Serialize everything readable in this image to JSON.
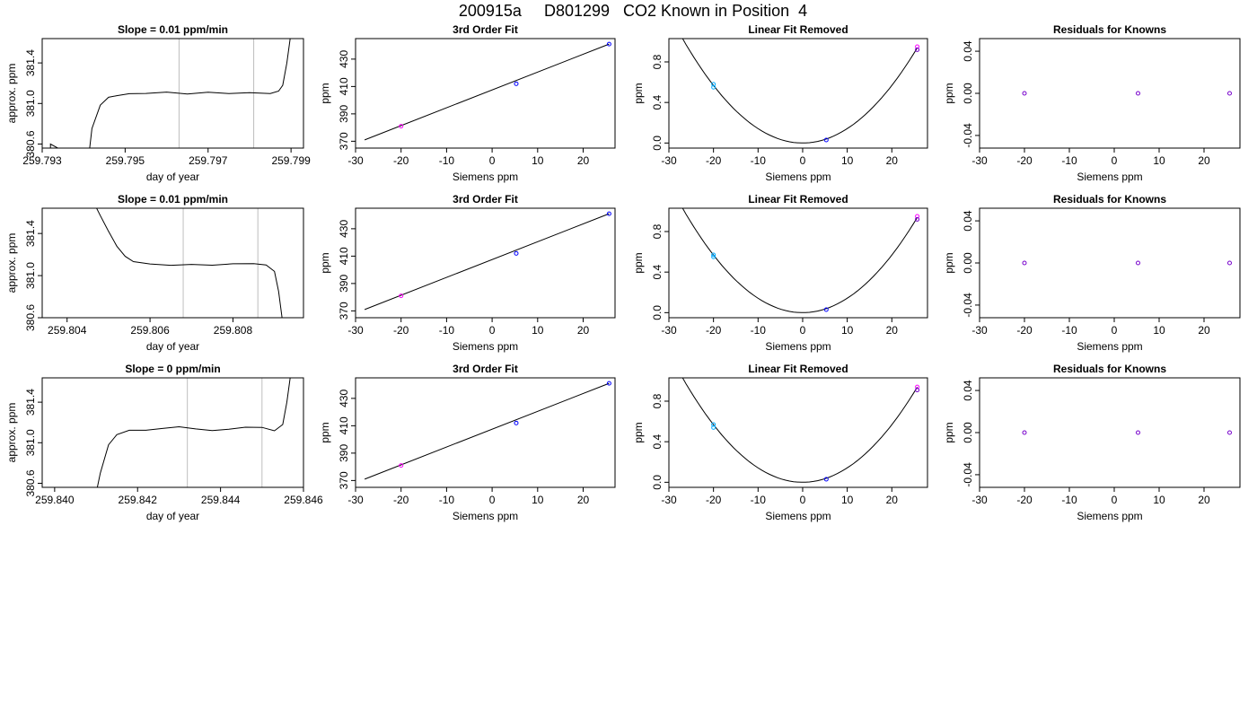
{
  "title": "200915a     D801299   CO2 Known in Position  4",
  "colors": {
    "line": "#000000",
    "gridline": "#bebebe",
    "point_magenta": "#ff00ff",
    "point_blue": "#0000ff",
    "point_cyan": "#00aaff",
    "point_purple": "#7700cc"
  },
  "chart_data": [
    {
      "type": "line",
      "title": "Slope =  0.01  ppm/min",
      "xlabel": "day of year",
      "ylabel": "approx. ppm",
      "xlim": [
        259.793,
        259.7993
      ],
      "ylim": [
        380.56,
        381.64
      ],
      "xticks": [
        "259.793",
        "259.795",
        "259.797",
        "259.799"
      ],
      "yticks": [
        "380.6",
        "381.0",
        "381.4"
      ],
      "vlines": [
        259.7963,
        259.7981
      ],
      "series": [
        {
          "x": [
            259.7932,
            259.7932,
            259.7932,
            259.7941,
            259.7942,
            259.7944,
            259.7946,
            259.7948,
            259.7951,
            259.7955,
            259.796,
            259.7965,
            259.797,
            259.7975,
            259.798,
            259.7985,
            259.7987,
            259.7988,
            259.7989,
            259.799
          ],
          "y": [
            380.5,
            380.55,
            380.6,
            380.4,
            380.75,
            380.98,
            381.06,
            381.08,
            381.1,
            381.1,
            381.11,
            381.09,
            381.11,
            381.1,
            381.11,
            381.1,
            381.12,
            381.18,
            381.4,
            381.7
          ]
        }
      ]
    },
    {
      "type": "scatter",
      "title": "3rd Order Fit",
      "xlabel": "Siemens ppm",
      "ylabel": "ppm",
      "xlim": [
        -30,
        27
      ],
      "ylim": [
        365,
        445
      ],
      "xticks": [
        -30,
        -20,
        -10,
        0,
        10,
        20
      ],
      "yticks": [
        370,
        390,
        410,
        430
      ],
      "points": [
        {
          "x": -20,
          "y": 381,
          "color": "magenta"
        },
        {
          "x": 5.3,
          "y": 412,
          "color": "blue"
        },
        {
          "x": 25.7,
          "y": 441,
          "color": "blue"
        }
      ],
      "fit_line": [
        [
          -28,
          371
        ],
        [
          25.7,
          441
        ]
      ]
    },
    {
      "type": "scatter",
      "title": "Linear Fit Removed",
      "xlabel": "Siemens ppm",
      "ylabel": "ppm",
      "xlim": [
        -30,
        28
      ],
      "ylim": [
        -0.05,
        1.03
      ],
      "xticks": [
        -30,
        -20,
        -10,
        0,
        10,
        20
      ],
      "yticks": [
        "0.0",
        "0.4",
        "0.8"
      ],
      "points": [
        {
          "x": -20,
          "y": 0.58,
          "color": "cyan"
        },
        {
          "x": -20,
          "y": 0.55,
          "color": "cyan"
        },
        {
          "x": 5.3,
          "y": 0.03,
          "color": "blue"
        },
        {
          "x": 25.7,
          "y": 0.95,
          "color": "magenta"
        },
        {
          "x": 25.7,
          "y": 0.92,
          "color": "purple"
        }
      ],
      "curve_coef": 0.00142,
      "curve_xrange": [
        -28,
        25.7
      ]
    },
    {
      "type": "scatter",
      "title": "Residuals for Knowns",
      "xlabel": "Siemens ppm",
      "ylabel": "ppm",
      "xlim": [
        -30,
        28
      ],
      "ylim": [
        -0.052,
        0.052
      ],
      "xticks": [
        -30,
        -20,
        -10,
        0,
        10,
        20
      ],
      "yticks": [
        "-0.04",
        "0.00",
        "0.04"
      ],
      "points": [
        {
          "x": -20,
          "y": 0,
          "color": "purple"
        },
        {
          "x": 5.3,
          "y": 0,
          "color": "purple"
        },
        {
          "x": 25.7,
          "y": 0,
          "color": "purple"
        }
      ]
    },
    {
      "type": "line",
      "title": "Slope =  0.01  ppm/min",
      "xlabel": "day of year",
      "ylabel": "approx. ppm",
      "xlim": [
        259.8034,
        259.8097
      ],
      "ylim": [
        380.6,
        381.64
      ],
      "xticks": [
        "259.804",
        "259.806",
        "259.808"
      ],
      "yticks": [
        "380.6",
        "381.0",
        "381.4"
      ],
      "vlines": [
        259.8068,
        259.8086
      ],
      "series": [
        {
          "x": [
            259.8047,
            259.8048,
            259.805,
            259.8052,
            259.8054,
            259.8056,
            259.806,
            259.8065,
            259.807,
            259.8075,
            259.808,
            259.8085,
            259.8088,
            259.809,
            259.8091,
            259.8092
          ],
          "y": [
            381.65,
            381.57,
            381.42,
            381.28,
            381.18,
            381.13,
            381.11,
            381.1,
            381.11,
            381.1,
            381.11,
            381.11,
            381.1,
            381.04,
            380.85,
            380.55
          ]
        }
      ]
    },
    {
      "type": "scatter",
      "title": "3rd Order Fit",
      "xlabel": "Siemens ppm",
      "ylabel": "ppm",
      "xlim": [
        -30,
        27
      ],
      "ylim": [
        365,
        445
      ],
      "xticks": [
        -30,
        -20,
        -10,
        0,
        10,
        20
      ],
      "yticks": [
        370,
        390,
        410,
        430
      ],
      "points": [
        {
          "x": -20,
          "y": 381,
          "color": "magenta"
        },
        {
          "x": 5.3,
          "y": 412,
          "color": "blue"
        },
        {
          "x": 25.7,
          "y": 441,
          "color": "blue"
        }
      ],
      "fit_line": [
        [
          -28,
          371
        ],
        [
          25.7,
          441
        ]
      ]
    },
    {
      "type": "scatter",
      "title": "Linear Fit Removed",
      "xlabel": "Siemens ppm",
      "ylabel": "ppm",
      "xlim": [
        -30,
        28
      ],
      "ylim": [
        -0.05,
        1.03
      ],
      "xticks": [
        -30,
        -20,
        -10,
        0,
        10,
        20
      ],
      "yticks": [
        "0.0",
        "0.4",
        "0.8"
      ],
      "points": [
        {
          "x": -20,
          "y": 0.57,
          "color": "cyan"
        },
        {
          "x": -20,
          "y": 0.55,
          "color": "cyan"
        },
        {
          "x": 5.3,
          "y": 0.03,
          "color": "blue"
        },
        {
          "x": 25.7,
          "y": 0.95,
          "color": "magenta"
        },
        {
          "x": 25.7,
          "y": 0.92,
          "color": "purple"
        }
      ],
      "curve_coef": 0.00142,
      "curve_xrange": [
        -28,
        25.7
      ]
    },
    {
      "type": "scatter",
      "title": "Residuals for Knowns",
      "xlabel": "Siemens ppm",
      "ylabel": "ppm",
      "xlim": [
        -30,
        28
      ],
      "ylim": [
        -0.052,
        0.052
      ],
      "xticks": [
        -30,
        -20,
        -10,
        0,
        10,
        20
      ],
      "yticks": [
        "-0.04",
        "0.00",
        "0.04"
      ],
      "points": [
        {
          "x": -20,
          "y": 0,
          "color": "purple"
        },
        {
          "x": 5.3,
          "y": 0,
          "color": "purple"
        },
        {
          "x": 25.7,
          "y": 0,
          "color": "purple"
        }
      ]
    },
    {
      "type": "line",
      "title": "Slope =  0  ppm/min",
      "xlabel": "day of year",
      "ylabel": "approx. ppm",
      "xlim": [
        259.8397,
        259.846
      ],
      "ylim": [
        380.56,
        381.64
      ],
      "xticks": [
        "259.840",
        "259.842",
        "259.844",
        "259.846"
      ],
      "yticks": [
        "380.6",
        "381.0",
        "381.4"
      ],
      "vlines": [
        259.8432,
        259.845
      ],
      "series": [
        {
          "x": [
            259.841,
            259.8411,
            259.8413,
            259.8415,
            259.8418,
            259.8422,
            259.8426,
            259.843,
            259.8434,
            259.8438,
            259.8442,
            259.8446,
            259.845,
            259.8453,
            259.8455,
            259.8456,
            259.8457
          ],
          "y": [
            380.5,
            380.7,
            380.98,
            381.08,
            381.12,
            381.12,
            381.14,
            381.16,
            381.14,
            381.12,
            381.13,
            381.15,
            381.15,
            381.12,
            381.18,
            381.4,
            381.7
          ]
        }
      ]
    },
    {
      "type": "scatter",
      "title": "3rd Order Fit",
      "xlabel": "Siemens ppm",
      "ylabel": "ppm",
      "xlim": [
        -30,
        27
      ],
      "ylim": [
        365,
        445
      ],
      "xticks": [
        -30,
        -20,
        -10,
        0,
        10,
        20
      ],
      "yticks": [
        370,
        390,
        410,
        430
      ],
      "points": [
        {
          "x": -20,
          "y": 381,
          "color": "magenta"
        },
        {
          "x": 5.3,
          "y": 412,
          "color": "blue"
        },
        {
          "x": 25.7,
          "y": 441,
          "color": "blue"
        }
      ],
      "fit_line": [
        [
          -28,
          371
        ],
        [
          25.7,
          441
        ]
      ]
    },
    {
      "type": "scatter",
      "title": "Linear Fit Removed",
      "xlabel": "Siemens ppm",
      "ylabel": "ppm",
      "xlim": [
        -30,
        28
      ],
      "ylim": [
        -0.05,
        1.03
      ],
      "xticks": [
        -30,
        -20,
        -10,
        0,
        10,
        20
      ],
      "yticks": [
        "0.0",
        "0.4",
        "0.8"
      ],
      "points": [
        {
          "x": -20,
          "y": 0.57,
          "color": "cyan"
        },
        {
          "x": -20,
          "y": 0.54,
          "color": "cyan"
        },
        {
          "x": 5.3,
          "y": 0.03,
          "color": "blue"
        },
        {
          "x": 25.7,
          "y": 0.94,
          "color": "magenta"
        },
        {
          "x": 25.7,
          "y": 0.91,
          "color": "purple"
        }
      ],
      "curve_coef": 0.00142,
      "curve_xrange": [
        -28,
        25.7
      ]
    },
    {
      "type": "scatter",
      "title": "Residuals for Knowns",
      "xlabel": "Siemens ppm",
      "ylabel": "ppm",
      "xlim": [
        -30,
        28
      ],
      "ylim": [
        -0.052,
        0.052
      ],
      "xticks": [
        -30,
        -20,
        -10,
        0,
        10,
        20
      ],
      "yticks": [
        "-0.04",
        "0.00",
        "0.04"
      ],
      "points": [
        {
          "x": -20,
          "y": 0,
          "color": "purple"
        },
        {
          "x": 5.3,
          "y": 0,
          "color": "purple"
        },
        {
          "x": 25.7,
          "y": 0,
          "color": "purple"
        }
      ]
    }
  ]
}
